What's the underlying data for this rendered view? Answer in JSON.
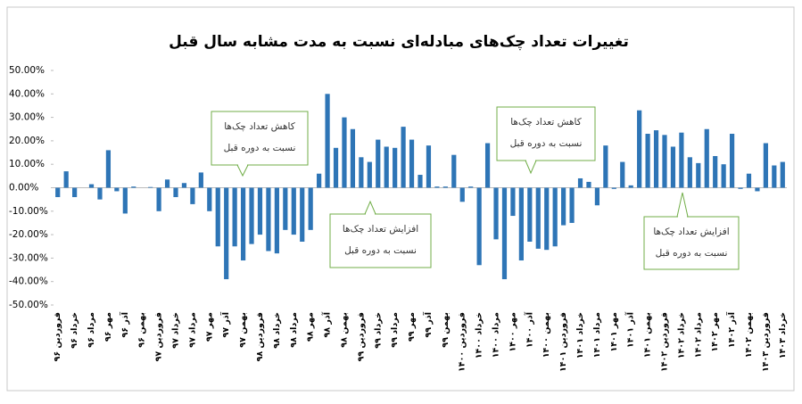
{
  "chart_data": {
    "type": "bar",
    "title": "تغییرات تعداد چک‌های مبادله‌ای نسبت به مدت مشابه سال قبل",
    "color": "#2e75b6",
    "categories": [
      "فروردین ۹۶",
      null,
      "خرداد ۹۶",
      null,
      "مرداد ۹۶",
      null,
      "مهر ۹۶",
      null,
      "آذر ۹۶",
      null,
      "بهمن ۹۶",
      null,
      "فروردین ۹۷",
      null,
      "خرداد ۹۷",
      null,
      "مرداد ۹۷",
      null,
      "مهر ۹۷",
      null,
      "آذر ۹۷",
      null,
      "بهمن ۹۷",
      null,
      "فروردین ۹۸",
      null,
      "خرداد ۹۸",
      null,
      "مرداد ۹۸",
      null,
      "مهر ۹۸",
      null,
      "آذر ۹۸",
      null,
      "بهمن ۹۸",
      null,
      "فروردین ۹۹",
      null,
      "خرداد ۹۹",
      null,
      "مرداد ۹۹",
      null,
      "مهر ۹۹",
      null,
      "آذر ۹۹",
      null,
      "بهمن ۹۹",
      null,
      "فروردین ۱۴۰۰",
      null,
      "خرداد ۱۴۰۰",
      null,
      "مرداد ۱۴۰۰",
      null,
      "مهر ۱۴۰۰",
      null,
      "آذر ۱۴۰۰",
      null,
      "بهمن ۱۴۰۰",
      null,
      "فروردین ۱۴۰۱",
      null,
      "خرداد ۱۴۰۱",
      null,
      "مرداد ۱۴۰۱",
      null,
      "مهر ۱۴۰۱",
      null,
      "آذر ۱۴۰۱",
      null,
      "بهمن ۱۴۰۱",
      null,
      "فروردین ۱۴۰۲",
      null,
      "خرداد ۱۴۰۲",
      null,
      "مرداد ۱۴۰۲",
      null,
      "مهر ۱۴۰۲",
      null,
      "آذر ۱۴۰۲",
      null,
      "بهمن ۱۴۰۲",
      null,
      "فروردین ۱۴۰۳",
      null,
      "خرداد ۱۴۰۳"
    ],
    "values": [
      -4,
      7,
      -4,
      0,
      1.5,
      -5,
      16,
      -1.5,
      -11,
      0.5,
      0,
      0.3,
      -10,
      3.5,
      -4,
      2,
      -7,
      6.5,
      -10,
      -25,
      -39,
      -25,
      -31,
      -24,
      -20,
      -27,
      -28,
      -18,
      -20,
      -23,
      -18,
      6,
      40,
      17,
      30,
      25,
      13,
      11,
      20.5,
      17.5,
      17,
      26,
      20.5,
      5.5,
      18,
      0.5,
      0.5,
      14,
      -6,
      0.5,
      -33,
      19,
      -22,
      -39,
      -12,
      -31,
      -23,
      -26,
      -26.5,
      -25,
      -16,
      -15,
      4,
      2.5,
      -7.5,
      18,
      -0.5,
      11,
      1,
      33,
      23,
      24.5,
      22.5,
      17.5,
      23.5,
      13,
      10.5,
      25,
      13.5,
      10,
      23,
      -0.5,
      6,
      -1.5,
      19,
      9.5,
      11
    ],
    "ylim": [
      -50,
      50
    ],
    "yticks": [
      {
        "value": -50,
        "label": "-50.00%"
      },
      {
        "value": -40,
        "label": "-40.00%"
      },
      {
        "value": -30,
        "label": "-30.00%"
      },
      {
        "value": -20,
        "label": "-20.00%"
      },
      {
        "value": -10,
        "label": "-10.00%"
      },
      {
        "value": 0,
        "label": "0.00%"
      },
      {
        "value": 10,
        "label": "10.00%"
      },
      {
        "value": 20,
        "label": "20.00%"
      },
      {
        "value": 30,
        "label": "30.00%"
      },
      {
        "value": 40,
        "label": "40.00%"
      },
      {
        "value": 50,
        "label": "50.00%"
      }
    ],
    "annotations": [
      {
        "lines": [
          "کاهش تعداد چک‌ها",
          "نسبت به دوره قبل"
        ]
      },
      {
        "lines": [
          "افزایش تعداد چک‌ها",
          "نسبت به دوره قبل"
        ]
      },
      {
        "lines": [
          "کاهش تعداد چک‌ها",
          "نسبت به دوره قبل"
        ]
      },
      {
        "lines": [
          "افزایش تعداد چک‌ها",
          "نسبت به دوره قبل"
        ]
      }
    ]
  }
}
